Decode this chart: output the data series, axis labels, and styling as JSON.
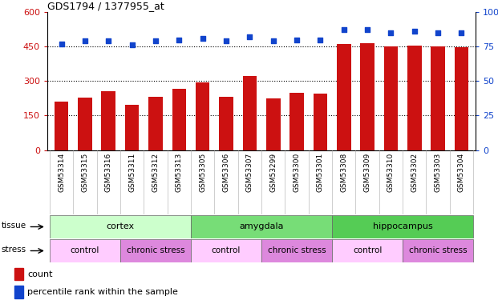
{
  "title": "GDS1794 / 1377955_at",
  "samples": [
    "GSM53314",
    "GSM53315",
    "GSM53316",
    "GSM53311",
    "GSM53312",
    "GSM53313",
    "GSM53305",
    "GSM53306",
    "GSM53307",
    "GSM53299",
    "GSM53300",
    "GSM53301",
    "GSM53308",
    "GSM53309",
    "GSM53310",
    "GSM53302",
    "GSM53303",
    "GSM53304"
  ],
  "counts": [
    210,
    228,
    255,
    195,
    230,
    265,
    295,
    230,
    320,
    225,
    248,
    245,
    460,
    465,
    450,
    455,
    450,
    448
  ],
  "percentiles": [
    77,
    79,
    79,
    76,
    79,
    80,
    81,
    79,
    82,
    79,
    80,
    80,
    87,
    87,
    85,
    86,
    85,
    85
  ],
  "bar_color": "#cc1111",
  "dot_color": "#1144cc",
  "ylim_left": [
    0,
    600
  ],
  "ylim_right": [
    0,
    100
  ],
  "yticks_left": [
    0,
    150,
    300,
    450,
    600
  ],
  "yticks_right": [
    0,
    25,
    50,
    75,
    100
  ],
  "tissue_groups": [
    {
      "label": "cortex",
      "start": 0,
      "end": 6,
      "color": "#ccffcc"
    },
    {
      "label": "amygdala",
      "start": 6,
      "end": 12,
      "color": "#77dd77"
    },
    {
      "label": "hippocampus",
      "start": 12,
      "end": 18,
      "color": "#55cc55"
    }
  ],
  "stress_groups": [
    {
      "label": "control",
      "start": 0,
      "end": 3,
      "color": "#ffccff"
    },
    {
      "label": "chronic stress",
      "start": 3,
      "end": 6,
      "color": "#dd88dd"
    },
    {
      "label": "control",
      "start": 6,
      "end": 9,
      "color": "#ffccff"
    },
    {
      "label": "chronic stress",
      "start": 9,
      "end": 12,
      "color": "#dd88dd"
    },
    {
      "label": "control",
      "start": 12,
      "end": 15,
      "color": "#ffccff"
    },
    {
      "label": "chronic stress",
      "start": 15,
      "end": 18,
      "color": "#dd88dd"
    }
  ],
  "legend_count_color": "#cc1111",
  "legend_pct_color": "#1144cc",
  "bg_color": "#ffffff",
  "xtick_bg_color": "#cccccc"
}
